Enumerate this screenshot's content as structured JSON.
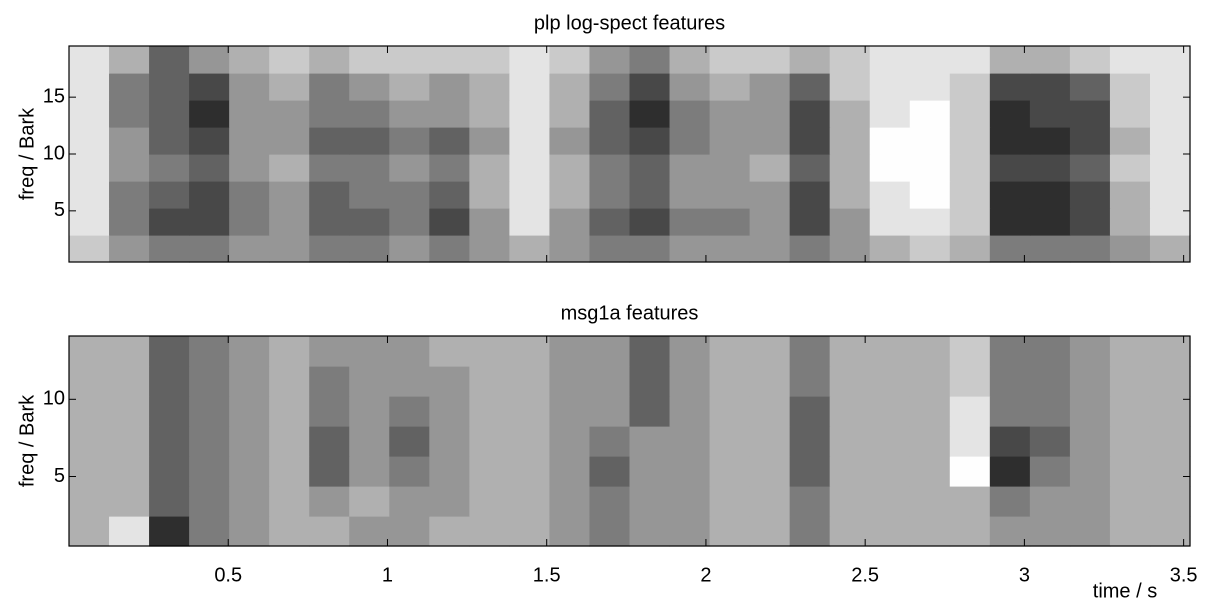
{
  "chart_data": [
    {
      "type": "heatmap",
      "title": "plp log-spect features",
      "ylabel": "freq / Bark",
      "xlim": [
        0,
        3.52
      ],
      "ylim": [
        0.5,
        19.5
      ],
      "yticks": [
        5,
        10,
        15
      ],
      "xticks": [
        0.5,
        1,
        1.5,
        2,
        2.5,
        3,
        3.5
      ],
      "show_xtick_labels": false,
      "colormap": "gray",
      "z": [
        [
          7,
          5,
          4,
          4,
          5,
          5,
          4,
          4,
          5,
          4,
          5,
          6,
          5,
          4,
          4,
          5,
          5,
          5,
          4,
          5,
          6,
          7,
          6,
          4,
          4,
          4,
          5,
          6
        ],
        [
          8,
          4,
          2,
          2,
          4,
          5,
          3,
          3,
          4,
          2,
          5,
          8,
          5,
          3,
          2,
          4,
          4,
          5,
          2,
          5,
          8,
          8,
          7,
          1,
          1,
          2,
          6,
          8
        ],
        [
          8,
          4,
          3,
          2,
          4,
          5,
          3,
          4,
          4,
          3,
          6,
          8,
          6,
          4,
          3,
          5,
          5,
          5,
          2,
          6,
          8,
          9,
          7,
          1,
          1,
          2,
          6,
          8
        ],
        [
          8,
          5,
          4,
          3,
          5,
          6,
          4,
          4,
          5,
          4,
          6,
          8,
          6,
          4,
          3,
          5,
          5,
          6,
          3,
          6,
          9,
          9,
          7,
          2,
          2,
          3,
          7,
          8
        ],
        [
          8,
          5,
          3,
          2,
          5,
          5,
          3,
          3,
          4,
          3,
          5,
          8,
          5,
          3,
          2,
          4,
          5,
          5,
          2,
          6,
          9,
          9,
          7,
          1,
          1,
          2,
          6,
          8
        ],
        [
          8,
          4,
          3,
          1,
          5,
          5,
          4,
          4,
          5,
          5,
          6,
          8,
          6,
          3,
          1,
          4,
          5,
          5,
          2,
          6,
          8,
          9,
          7,
          1,
          2,
          2,
          7,
          8
        ],
        [
          8,
          4,
          3,
          2,
          5,
          6,
          4,
          5,
          6,
          5,
          6,
          8,
          6,
          4,
          2,
          5,
          6,
          5,
          3,
          7,
          8,
          8,
          7,
          2,
          2,
          3,
          7,
          8
        ],
        [
          8,
          6,
          3,
          5,
          6,
          7,
          6,
          7,
          7,
          7,
          7,
          8,
          7,
          5,
          4,
          6,
          7,
          7,
          6,
          7,
          8,
          8,
          8,
          6,
          6,
          7,
          8,
          8
        ]
      ]
    },
    {
      "type": "heatmap",
      "title": "msg1a features",
      "ylabel": "freq / Bark",
      "xlabel": "time / s",
      "xlim": [
        0,
        3.52
      ],
      "ylim": [
        0.5,
        14.1
      ],
      "yticks": [
        5,
        10
      ],
      "xticks": [
        0.5,
        1,
        1.5,
        2,
        2.5,
        3,
        3.5
      ],
      "show_xtick_labels": true,
      "colormap": "gray",
      "z": [
        [
          6,
          8,
          1,
          4,
          5,
          6,
          6,
          5,
          5,
          6,
          6,
          6,
          5,
          4,
          5,
          5,
          6,
          6,
          4,
          6,
          6,
          6,
          6,
          5,
          5,
          5,
          6,
          6
        ],
        [
          6,
          6,
          3,
          4,
          5,
          6,
          5,
          6,
          5,
          5,
          6,
          6,
          5,
          4,
          5,
          5,
          6,
          6,
          4,
          6,
          6,
          6,
          6,
          4,
          5,
          5,
          6,
          6
        ],
        [
          6,
          6,
          3,
          4,
          5,
          6,
          3,
          5,
          4,
          5,
          6,
          6,
          5,
          3,
          5,
          5,
          6,
          6,
          3,
          6,
          6,
          6,
          9,
          1,
          4,
          5,
          6,
          6
        ],
        [
          6,
          6,
          3,
          4,
          5,
          6,
          3,
          5,
          3,
          5,
          6,
          6,
          5,
          4,
          5,
          5,
          6,
          6,
          3,
          6,
          6,
          6,
          8,
          2,
          3,
          5,
          6,
          6
        ],
        [
          6,
          6,
          3,
          4,
          5,
          6,
          4,
          5,
          4,
          5,
          6,
          6,
          5,
          5,
          3,
          5,
          6,
          6,
          3,
          6,
          6,
          6,
          8,
          4,
          4,
          5,
          6,
          6
        ],
        [
          6,
          6,
          3,
          4,
          5,
          6,
          4,
          5,
          5,
          5,
          6,
          6,
          5,
          5,
          3,
          5,
          6,
          6,
          4,
          6,
          6,
          6,
          7,
          4,
          4,
          5,
          6,
          6
        ],
        [
          6,
          6,
          3,
          4,
          5,
          6,
          5,
          5,
          5,
          6,
          6,
          6,
          5,
          5,
          3,
          5,
          6,
          6,
          4,
          6,
          6,
          6,
          7,
          4,
          4,
          5,
          6,
          6
        ]
      ]
    }
  ]
}
